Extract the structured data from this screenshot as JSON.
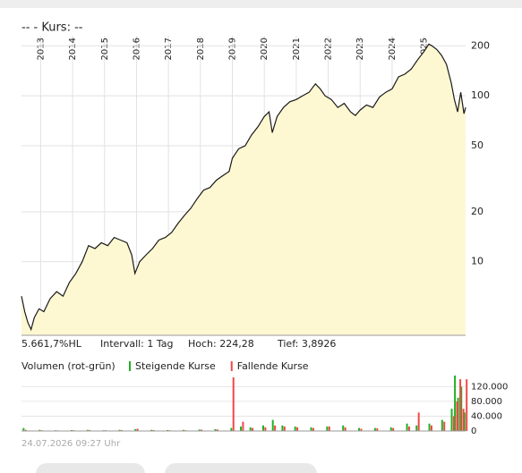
{
  "chart_data": [
    {
      "type": "line",
      "title": "--  - Kurs: --",
      "log_scale": true,
      "grid": true,
      "color": "#1a1a1a",
      "area_color": "#fdf8d2",
      "xlim": [
        2012.4,
        2026.3
      ],
      "xticks": [
        2013,
        2014,
        2015,
        2016,
        2017,
        2018,
        2019,
        2020,
        2021,
        2022,
        2023,
        2024,
        2025
      ],
      "ylim": [
        3.6,
        230
      ],
      "yticks": [
        10,
        20,
        50,
        100,
        200
      ],
      "x": [
        2012.4,
        2012.5,
        2012.6,
        2012.7,
        2012.8,
        2012.95,
        2013.1,
        2013.3,
        2013.5,
        2013.7,
        2013.9,
        2014.1,
        2014.3,
        2014.5,
        2014.7,
        2014.9,
        2015.1,
        2015.3,
        2015.5,
        2015.7,
        2015.85,
        2015.95,
        2016.1,
        2016.3,
        2016.5,
        2016.7,
        2016.9,
        2017.1,
        2017.3,
        2017.5,
        2017.7,
        2017.9,
        2018.1,
        2018.3,
        2018.5,
        2018.7,
        2018.9,
        2019.0,
        2019.2,
        2019.4,
        2019.6,
        2019.8,
        2020.0,
        2020.15,
        2020.25,
        2020.4,
        2020.6,
        2020.8,
        2021.0,
        2021.2,
        2021.4,
        2021.6,
        2021.75,
        2021.9,
        2022.1,
        2022.3,
        2022.5,
        2022.7,
        2022.85,
        2023.0,
        2023.2,
        2023.4,
        2023.6,
        2023.8,
        2024.0,
        2024.2,
        2024.4,
        2024.6,
        2024.8,
        2025.0,
        2025.15,
        2025.25,
        2025.4,
        2025.55,
        2025.7,
        2025.85,
        2025.95,
        2026.05,
        2026.15,
        2026.25,
        2026.3
      ],
      "values": [
        6.2,
        5.0,
        4.3,
        3.9,
        4.6,
        5.2,
        5.0,
        6.0,
        6.6,
        6.2,
        7.5,
        8.5,
        10,
        12.5,
        12,
        13,
        12.5,
        14,
        13.5,
        13,
        11,
        8.5,
        10,
        11,
        12,
        13.5,
        14,
        15,
        17,
        19,
        21,
        24,
        27,
        28,
        31,
        33,
        35,
        42,
        48,
        50,
        58,
        65,
        75,
        80,
        60,
        75,
        85,
        92,
        95,
        100,
        105,
        118,
        110,
        100,
        95,
        85,
        90,
        80,
        76,
        82,
        88,
        85,
        98,
        105,
        110,
        130,
        135,
        145,
        165,
        185,
        205,
        200,
        190,
        175,
        155,
        120,
        95,
        80,
        105,
        78,
        85
      ],
      "annotations": [
        "5.661,7%HL",
        "Intervall: 1 Tag",
        "Hoch: 224,28",
        "Tief: 3,8926"
      ]
    },
    {
      "type": "bar",
      "title": "Volumen (rot-grün)",
      "grid": true,
      "xlim": [
        2012.4,
        2026.3
      ],
      "ylim": [
        0,
        150000
      ],
      "yticks": [
        0,
        {
          "value": 40000,
          "label": "40.000"
        },
        {
          "value": 80000,
          "label": "80.000"
        },
        {
          "value": 120000,
          "label": "120.000"
        }
      ],
      "x": [
        2012.5,
        2013.0,
        2013.5,
        2014.0,
        2014.5,
        2015.0,
        2015.5,
        2016.0,
        2016.5,
        2017.0,
        2017.5,
        2018.0,
        2018.5,
        2019.0,
        2019.3,
        2019.6,
        2020.0,
        2020.3,
        2020.6,
        2021.0,
        2021.5,
        2022.0,
        2022.5,
        2023.0,
        2023.5,
        2024.0,
        2024.5,
        2024.8,
        2025.2,
        2025.6,
        2025.9,
        2026.0,
        2026.1,
        2026.2,
        2026.3
      ],
      "series": [
        {
          "name": "Steigende Kurse",
          "color": "#22b022",
          "values": [
            8000,
            3000,
            2000,
            2500,
            3000,
            2000,
            3000,
            5000,
            3000,
            2500,
            3000,
            4000,
            5000,
            8000,
            12000,
            10000,
            15000,
            30000,
            15000,
            12000,
            10000,
            12000,
            15000,
            8000,
            8000,
            10000,
            20000,
            15000,
            20000,
            30000,
            60000,
            150000,
            90000,
            120000,
            50000
          ]
        },
        {
          "name": "Fallende Kurse",
          "color": "#f04848",
          "values": [
            3000,
            2000,
            1500,
            2000,
            2500,
            2000,
            2500,
            6000,
            2500,
            2000,
            2000,
            3500,
            4000,
            145000,
            25000,
            8000,
            10000,
            15000,
            12000,
            10000,
            8000,
            12000,
            10000,
            6000,
            7000,
            8000,
            12000,
            50000,
            15000,
            25000,
            40000,
            80000,
            140000,
            60000,
            140000
          ]
        }
      ]
    }
  ],
  "footer": "24.07.2026 09:27 Uhr"
}
